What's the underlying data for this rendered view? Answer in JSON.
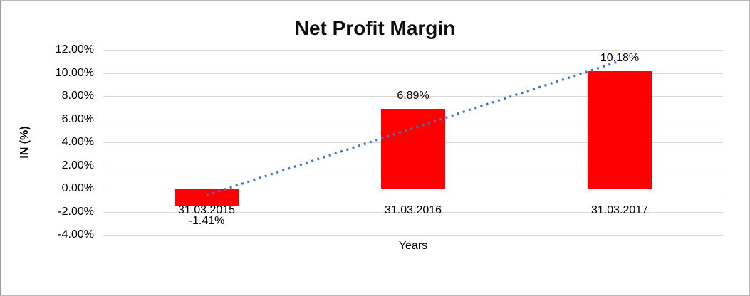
{
  "chart": {
    "title": "Net Profit Margin",
    "y_axis_title": "IN (%)",
    "x_axis_title": "Years"
  },
  "chart_data": {
    "type": "bar",
    "title": "Net Profit Margin",
    "categories": [
      "31.03.2015",
      "31.03.2016",
      "31.03.2017"
    ],
    "values": [
      -1.41,
      6.89,
      10.18
    ],
    "data_labels": [
      "-1.41%",
      "6.89%",
      "10.18%"
    ],
    "xlabel": "Years",
    "ylabel": "IN (%)",
    "ylim": [
      -4,
      12
    ],
    "ytick_step": 2,
    "ytick_labels": [
      "12.00%",
      "10.00%",
      "8.00%",
      "6.00%",
      "4.00%",
      "2.00%",
      "0.00%",
      "-2.00%",
      "-4.00%"
    ],
    "grid": true,
    "legend_position": "none",
    "bar_color": "#FF0000",
    "gridline_color": "#d9d9d9",
    "trendline": {
      "type": "linear",
      "style": "dotted",
      "color": "#4472C4",
      "spans": "first-to-last-category"
    }
  }
}
